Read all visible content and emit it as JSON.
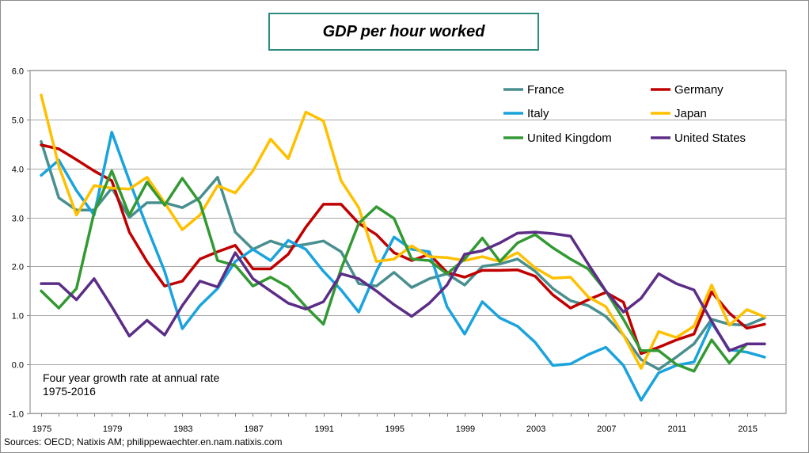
{
  "chart_data": {
    "type": "line",
    "title": "GDP per hour worked",
    "note_line1": "Four year growth rate at annual rate",
    "note_line2": "1975-2016",
    "source": "Sources: OECD; Natixis AM; philippewaechter.en.nam.natixis.com",
    "xlabel": "",
    "ylabel": "",
    "xlim": [
      1975,
      2016
    ],
    "ylim": [
      -1.0,
      6.0
    ],
    "y_ticks": [
      -1.0,
      0.0,
      1.0,
      2.0,
      3.0,
      4.0,
      5.0,
      6.0
    ],
    "y_tick_labels": [
      "-1.0",
      "0.0",
      "1.0",
      "2.0",
      "3.0",
      "4.0",
      "5.0",
      "6.0"
    ],
    "x_ticks": [
      1975,
      1979,
      1983,
      1987,
      1991,
      1995,
      1999,
      2003,
      2007,
      2011,
      2015
    ],
    "x_tick_labels": [
      "1975",
      "1979",
      "1983",
      "1987",
      "1991",
      "1995",
      "1999",
      "2003",
      "2007",
      "2011",
      "2015"
    ],
    "grid": true,
    "legend_position": "top-right",
    "x": [
      1975,
      1976,
      1977,
      1978,
      1979,
      1980,
      1981,
      1982,
      1983,
      1984,
      1985,
      1986,
      1987,
      1988,
      1989,
      1990,
      1991,
      1992,
      1993,
      1994,
      1995,
      1996,
      1997,
      1998,
      1999,
      2000,
      2001,
      2002,
      2003,
      2004,
      2005,
      2006,
      2007,
      2008,
      2009,
      2010,
      2011,
      2012,
      2013,
      2014,
      2015,
      2016
    ],
    "series": [
      {
        "name": "France",
        "color": "#4a8f8f",
        "values": [
          4.55,
          3.4,
          3.15,
          3.15,
          3.6,
          3.0,
          3.3,
          3.3,
          3.2,
          3.4,
          3.82,
          2.7,
          2.35,
          2.52,
          2.4,
          2.45,
          2.52,
          2.3,
          1.65,
          1.6,
          1.88,
          1.57,
          1.75,
          1.85,
          1.62,
          2.0,
          2.05,
          2.15,
          1.9,
          1.55,
          1.3,
          1.2,
          0.98,
          0.6,
          0.1,
          -0.1,
          0.15,
          0.42,
          0.92,
          0.82,
          0.8,
          0.95
        ]
      },
      {
        "name": "Germany",
        "color": "#c00000",
        "values": [
          4.48,
          4.4,
          4.18,
          3.95,
          3.75,
          2.7,
          2.1,
          1.6,
          1.7,
          2.15,
          2.3,
          2.43,
          1.95,
          1.95,
          2.25,
          2.8,
          3.27,
          3.27,
          2.88,
          2.65,
          2.28,
          2.12,
          2.25,
          1.88,
          1.78,
          1.92,
          1.92,
          1.93,
          1.8,
          1.42,
          1.15,
          1.32,
          1.47,
          1.27,
          0.22,
          0.35,
          0.5,
          0.62,
          1.48,
          1.05,
          0.74,
          0.82
        ]
      },
      {
        "name": "Italy",
        "color": "#1aa3dc",
        "values": [
          3.86,
          4.17,
          3.55,
          3.05,
          4.74,
          3.75,
          2.8,
          1.9,
          0.73,
          1.2,
          1.55,
          2.1,
          2.35,
          2.12,
          2.53,
          2.35,
          1.9,
          1.52,
          1.07,
          1.9,
          2.6,
          2.35,
          2.3,
          1.18,
          0.62,
          1.28,
          0.95,
          0.78,
          0.45,
          -0.02,
          0.01,
          0.2,
          0.35,
          -0.02,
          -0.73,
          -0.17,
          -0.02,
          0.05,
          0.85,
          0.3,
          0.25,
          0.15
        ]
      },
      {
        "name": "Japan",
        "color": "#ffc000",
        "values": [
          5.5,
          4.05,
          3.05,
          3.65,
          3.6,
          3.58,
          3.82,
          3.3,
          2.75,
          3.05,
          3.65,
          3.5,
          3.95,
          4.6,
          4.2,
          5.15,
          4.97,
          3.75,
          3.2,
          2.1,
          2.15,
          2.42,
          2.2,
          2.18,
          2.12,
          2.2,
          2.1,
          2.28,
          1.97,
          1.76,
          1.78,
          1.38,
          1.18,
          0.6,
          -0.08,
          0.67,
          0.55,
          0.78,
          1.62,
          0.8,
          1.12,
          0.97
        ]
      },
      {
        "name": "United Kingdom",
        "color": "#339933",
        "values": [
          1.5,
          1.15,
          1.55,
          3.1,
          3.95,
          3.05,
          3.72,
          3.25,
          3.8,
          3.3,
          2.12,
          2.02,
          1.6,
          1.78,
          1.58,
          1.18,
          0.82,
          1.95,
          2.88,
          3.22,
          2.98,
          2.15,
          2.12,
          1.85,
          2.15,
          2.58,
          2.1,
          2.48,
          2.65,
          2.38,
          2.15,
          1.95,
          1.5,
          0.92,
          0.28,
          0.28,
          0.0,
          -0.14,
          0.5,
          0.03,
          0.42,
          0.42
        ]
      },
      {
        "name": "United States",
        "color": "#5c2d86",
        "values": [
          1.65,
          1.65,
          1.32,
          1.75,
          1.18,
          0.58,
          0.9,
          0.6,
          1.2,
          1.7,
          1.58,
          2.28,
          1.75,
          1.5,
          1.25,
          1.13,
          1.28,
          1.85,
          1.75,
          1.5,
          1.22,
          0.98,
          1.25,
          1.62,
          2.25,
          2.32,
          2.48,
          2.68,
          2.7,
          2.67,
          2.62,
          2.05,
          1.5,
          1.07,
          1.35,
          1.85,
          1.65,
          1.52,
          0.88,
          0.28,
          0.42,
          0.42
        ]
      }
    ]
  }
}
